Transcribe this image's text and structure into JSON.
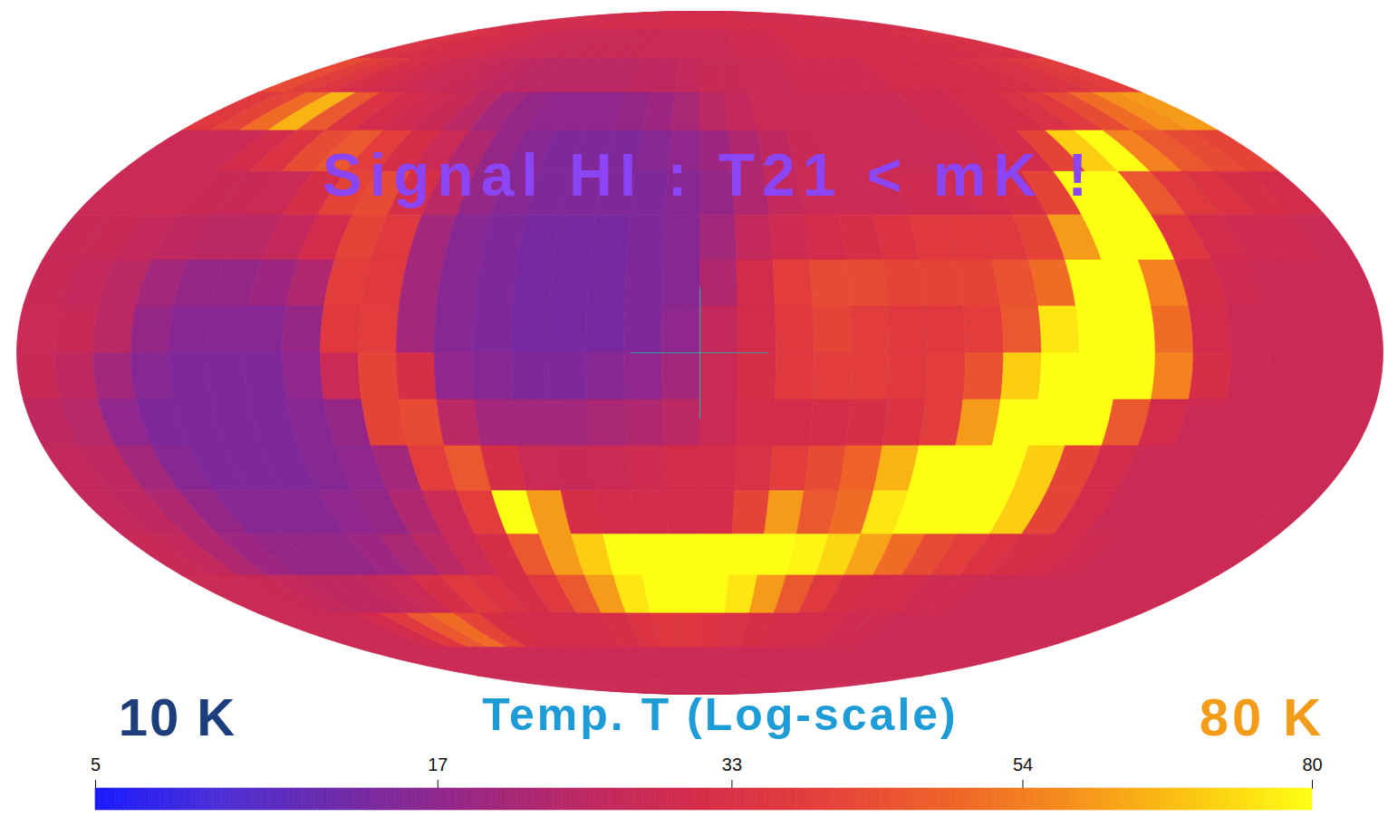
{
  "chart_data": {
    "type": "map",
    "annotation": "Signal HI : T21 < mK !",
    "lon": [
      -175,
      -165,
      -155,
      -145,
      -135,
      -125,
      -115,
      -105,
      -95,
      -85,
      -75,
      -65,
      -55,
      -45,
      -35,
      -25,
      -15,
      -5,
      5,
      15,
      25,
      35,
      45,
      55,
      65,
      75,
      85,
      95,
      105,
      115,
      125,
      135,
      145,
      155,
      165,
      175
    ],
    "lat": [
      85,
      75,
      65,
      55,
      45,
      35,
      25,
      15,
      5,
      -5,
      -15,
      -25,
      -35,
      -45,
      -55,
      -65,
      -75,
      -85
    ],
    "values": [
      [
        30,
        30,
        30,
        30,
        30,
        30,
        30,
        30,
        30,
        30,
        30,
        30,
        30,
        30,
        30,
        30,
        30,
        30,
        30,
        30,
        30,
        30,
        30,
        30,
        30,
        30,
        30,
        30,
        30,
        30,
        30,
        30,
        30,
        30,
        30,
        30
      ],
      [
        34,
        33,
        32,
        31,
        30,
        30,
        29,
        28,
        28,
        27,
        27,
        27,
        27,
        27,
        27,
        28,
        28,
        28,
        28,
        28,
        29,
        29,
        29,
        30,
        30,
        30,
        30,
        30,
        30,
        30,
        31,
        31,
        31,
        32,
        32,
        33
      ],
      [
        42,
        38,
        35,
        32,
        30,
        29,
        28,
        27,
        26,
        25,
        24,
        24,
        24,
        24,
        24,
        25,
        25,
        26,
        27,
        27,
        28,
        28,
        29,
        29,
        29,
        29,
        30,
        30,
        30,
        31,
        31,
        32,
        33,
        34,
        36,
        38
      ],
      [
        36,
        40,
        50,
        65,
        45,
        34,
        30,
        29,
        27,
        24,
        20,
        18,
        17,
        17,
        17,
        18,
        19,
        21,
        24,
        26,
        28,
        28,
        28,
        28,
        28,
        28,
        29,
        29,
        30,
        31,
        33,
        36,
        42,
        50,
        58,
        60
      ],
      [
        28,
        28,
        28,
        30,
        34,
        42,
        45,
        38,
        32,
        28,
        22,
        18,
        16,
        15,
        15,
        15,
        16,
        17,
        19,
        22,
        25,
        27,
        28,
        28,
        28,
        28,
        28,
        29,
        31,
        40,
        70,
        80,
        55,
        45,
        42,
        40
      ],
      [
        28,
        28,
        28,
        27,
        27,
        28,
        32,
        40,
        42,
        32,
        24,
        18,
        16,
        15,
        15,
        15,
        15,
        16,
        18,
        22,
        26,
        28,
        28,
        28,
        29,
        29,
        30,
        32,
        40,
        80,
        80,
        45,
        36,
        34,
        32,
        30
      ],
      [
        27,
        27,
        26,
        25,
        24,
        24,
        26,
        30,
        40,
        36,
        20,
        16,
        15,
        14,
        14,
        14,
        15,
        16,
        20,
        26,
        29,
        30,
        32,
        34,
        36,
        36,
        36,
        40,
        60,
        80,
        80,
        35,
        30,
        29,
        29,
        28
      ],
      [
        27,
        26,
        24,
        20,
        18,
        18,
        19,
        22,
        38,
        36,
        20,
        16,
        15,
        14,
        14,
        14,
        15,
        16,
        22,
        30,
        38,
        42,
        42,
        40,
        40,
        40,
        44,
        50,
        80,
        80,
        55,
        32,
        29,
        28,
        28,
        28
      ],
      [
        28,
        27,
        24,
        18,
        16,
        16,
        16,
        18,
        36,
        38,
        20,
        16,
        15,
        14,
        14,
        14,
        15,
        17,
        26,
        30,
        36,
        40,
        38,
        36,
        36,
        38,
        45,
        75,
        80,
        80,
        50,
        30,
        28,
        28,
        28,
        28
      ],
      [
        27,
        25,
        20,
        16,
        15,
        15,
        15,
        17,
        28,
        40,
        32,
        17,
        16,
        15,
        15,
        16,
        17,
        20,
        28,
        32,
        36,
        38,
        38,
        36,
        38,
        44,
        70,
        80,
        80,
        80,
        55,
        32,
        28,
        28,
        28,
        28
      ],
      [
        25,
        23,
        17,
        15,
        15,
        15,
        15,
        16,
        18,
        40,
        42,
        24,
        20,
        20,
        20,
        21,
        22,
        24,
        28,
        30,
        30,
        31,
        32,
        34,
        38,
        60,
        80,
        80,
        80,
        45,
        30,
        28,
        28,
        28,
        28,
        28
      ],
      [
        26,
        25,
        20,
        16,
        15,
        15,
        15,
        16,
        17,
        20,
        38,
        45,
        32,
        28,
        27,
        28,
        29,
        30,
        31,
        33,
        38,
        42,
        48,
        65,
        80,
        80,
        80,
        70,
        40,
        30,
        28,
        28,
        28,
        28,
        28,
        28
      ],
      [
        26,
        25,
        22,
        18,
        16,
        16,
        16,
        17,
        18,
        22,
        28,
        38,
        80,
        60,
        32,
        30,
        30,
        30,
        31,
        40,
        60,
        45,
        50,
        75,
        80,
        80,
        80,
        70,
        40,
        30,
        28,
        28,
        28,
        28,
        28,
        28
      ],
      [
        27,
        26,
        22,
        19,
        18,
        18,
        18,
        19,
        21,
        24,
        28,
        32,
        45,
        60,
        70,
        80,
        80,
        80,
        80,
        80,
        80,
        78,
        72,
        62,
        50,
        42,
        38,
        34,
        32,
        30,
        29,
        28,
        28,
        28,
        28,
        28
      ],
      [
        28,
        28,
        27,
        26,
        25,
        25,
        26,
        28,
        32,
        36,
        34,
        32,
        36,
        45,
        60,
        75,
        80,
        80,
        80,
        75,
        60,
        45,
        36,
        32,
        30,
        30,
        29,
        29,
        28,
        28,
        28,
        28,
        28,
        28,
        28,
        28
      ],
      [
        28,
        28,
        28,
        28,
        30,
        36,
        45,
        50,
        40,
        32,
        30,
        30,
        30,
        31,
        32,
        34,
        35,
        35,
        34,
        33,
        32,
        31,
        30,
        30,
        29,
        29,
        28,
        28,
        28,
        28,
        28,
        28,
        28,
        28,
        28,
        28
      ],
      [
        28,
        28,
        28,
        28,
        28,
        28,
        28,
        28,
        28,
        28,
        28,
        28,
        28,
        28,
        28,
        28,
        28,
        28,
        28,
        28,
        28,
        28,
        28,
        28,
        28,
        28,
        28,
        28,
        28,
        28,
        28,
        28,
        28,
        28,
        28,
        28
      ],
      [
        28,
        28,
        28,
        28,
        28,
        28,
        28,
        28,
        28,
        28,
        28,
        28,
        28,
        28,
        28,
        28,
        28,
        28,
        28,
        28,
        28,
        28,
        28,
        28,
        28,
        28,
        28,
        28,
        28,
        28,
        28,
        28,
        28,
        28,
        28,
        28
      ]
    ],
    "colorbar": {
      "label": "Temp. T (Log-scale)",
      "min_label": "10 K",
      "max_label": "80 K",
      "range": [
        5,
        80
      ],
      "ticks": [
        5,
        17,
        33,
        54,
        80
      ]
    }
  }
}
